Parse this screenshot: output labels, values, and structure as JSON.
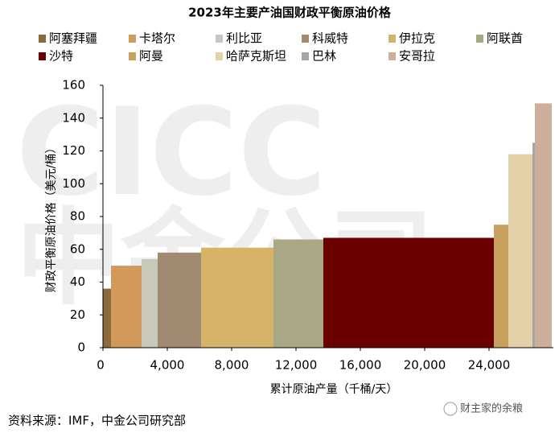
{
  "chart_data": {
    "type": "variable-width-bar",
    "title": "2023年主要产油国财政平衡原油价格",
    "x_label": "累计原油产量（千桶/天）",
    "y_label": "财政平衡原油价格（美元/桶）",
    "source": "资料来源：IMF，中金公司研究部",
    "watermark": [
      "CICC",
      "中金公司"
    ],
    "credit": "财主家的余粮",
    "categories": [
      "阿塞拜疆",
      "卡塔尔",
      "利比亚",
      "科威特",
      "伊拉克",
      "阿联酋",
      "沙特",
      "阿曼",
      "哈萨克斯坦",
      "巴林",
      "安哥拉"
    ],
    "colors": [
      "#8b6a3e",
      "#d19a5a",
      "#c8c9b8",
      "#a08a72",
      "#d7b36a",
      "#a9a886",
      "#6b0000",
      "#c9a15e",
      "#e5d1a8",
      "#a5a5a5",
      "#cdae98"
    ],
    "x_start": [
      0,
      500,
      2400,
      3400,
      6100,
      10600,
      13700,
      24300,
      25200,
      26700,
      26850
    ],
    "x_end": [
      500,
      2400,
      3400,
      6100,
      10600,
      13700,
      24300,
      25200,
      26700,
      26850,
      27900
    ],
    "values": [
      36,
      50,
      54,
      58,
      61,
      66,
      67,
      75,
      118,
      125,
      149
    ],
    "xlim": [
      0,
      28000
    ],
    "xticks": [
      0,
      {
        "value": 4000,
        "label": "4,000"
      },
      {
        "value": 8000,
        "label": "8,000"
      },
      {
        "value": 12000,
        "label": "12,000"
      },
      {
        "value": 16000,
        "label": "16,000"
      },
      {
        "value": 20000,
        "label": "20,000"
      },
      {
        "value": 24000,
        "label": "24,000"
      }
    ],
    "ylim": [
      0,
      160
    ],
    "yticks": [
      0,
      20,
      40,
      60,
      80,
      100,
      120,
      140,
      160
    ]
  }
}
